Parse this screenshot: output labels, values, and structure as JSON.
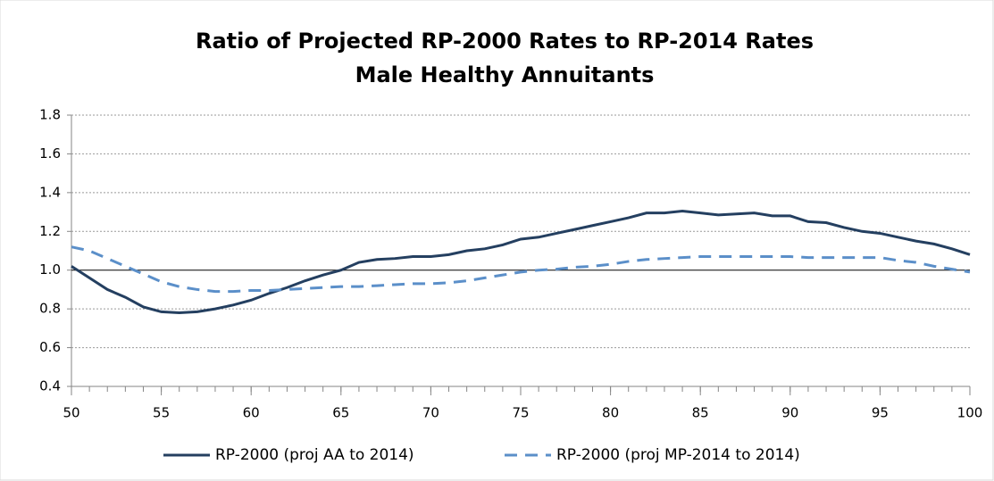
{
  "chart_data": {
    "type": "line",
    "title": "Ratio of Projected RP-2000 Rates to RP-2014 Rates",
    "subtitle": "Male Healthy Annuitants",
    "x": [
      50,
      51,
      52,
      53,
      54,
      55,
      56,
      57,
      58,
      59,
      60,
      61,
      62,
      63,
      64,
      65,
      66,
      67,
      68,
      69,
      70,
      71,
      72,
      73,
      74,
      75,
      76,
      77,
      78,
      79,
      80,
      81,
      82,
      83,
      84,
      85,
      86,
      87,
      88,
      89,
      90,
      91,
      92,
      93,
      94,
      95,
      96,
      97,
      98,
      99,
      100
    ],
    "series": [
      {
        "name": "RP-2000 (proj AA to 2014)",
        "color": "#243f60",
        "dash": "solid",
        "values": [
          1.02,
          0.96,
          0.9,
          0.86,
          0.81,
          0.785,
          0.78,
          0.785,
          0.8,
          0.82,
          0.845,
          0.88,
          0.91,
          0.945,
          0.975,
          1.0,
          1.04,
          1.055,
          1.06,
          1.07,
          1.07,
          1.08,
          1.1,
          1.11,
          1.13,
          1.16,
          1.17,
          1.19,
          1.21,
          1.23,
          1.25,
          1.27,
          1.295,
          1.295,
          1.305,
          1.295,
          1.285,
          1.29,
          1.295,
          1.28,
          1.28,
          1.25,
          1.245,
          1.22,
          1.2,
          1.19,
          1.17,
          1.15,
          1.135,
          1.11,
          1.08
        ]
      },
      {
        "name": "RP-2000 (proj MP-2014 to 2014)",
        "color": "#5b8fc9",
        "dash": "dashed",
        "values": [
          1.12,
          1.1,
          1.06,
          1.02,
          0.98,
          0.94,
          0.915,
          0.9,
          0.89,
          0.89,
          0.895,
          0.895,
          0.9,
          0.905,
          0.91,
          0.915,
          0.915,
          0.92,
          0.925,
          0.93,
          0.93,
          0.935,
          0.945,
          0.96,
          0.975,
          0.99,
          1.0,
          1.005,
          1.015,
          1.02,
          1.03,
          1.045,
          1.055,
          1.06,
          1.065,
          1.07,
          1.07,
          1.07,
          1.07,
          1.07,
          1.07,
          1.065,
          1.065,
          1.065,
          1.065,
          1.065,
          1.05,
          1.04,
          1.02,
          1.005,
          0.99
        ]
      }
    ],
    "xlim": [
      50,
      100
    ],
    "xticks": [
      50,
      55,
      60,
      65,
      70,
      75,
      80,
      85,
      90,
      95,
      100
    ],
    "ylim": [
      0.4,
      1.8
    ],
    "yticks": [
      0.4,
      0.6,
      0.8,
      {
        "value": 1,
        "label": "1.0"
      },
      1.2,
      1.4,
      1.6,
      1.8
    ],
    "x_axis_crossing": 1,
    "grid": true,
    "legend": "bottom"
  }
}
